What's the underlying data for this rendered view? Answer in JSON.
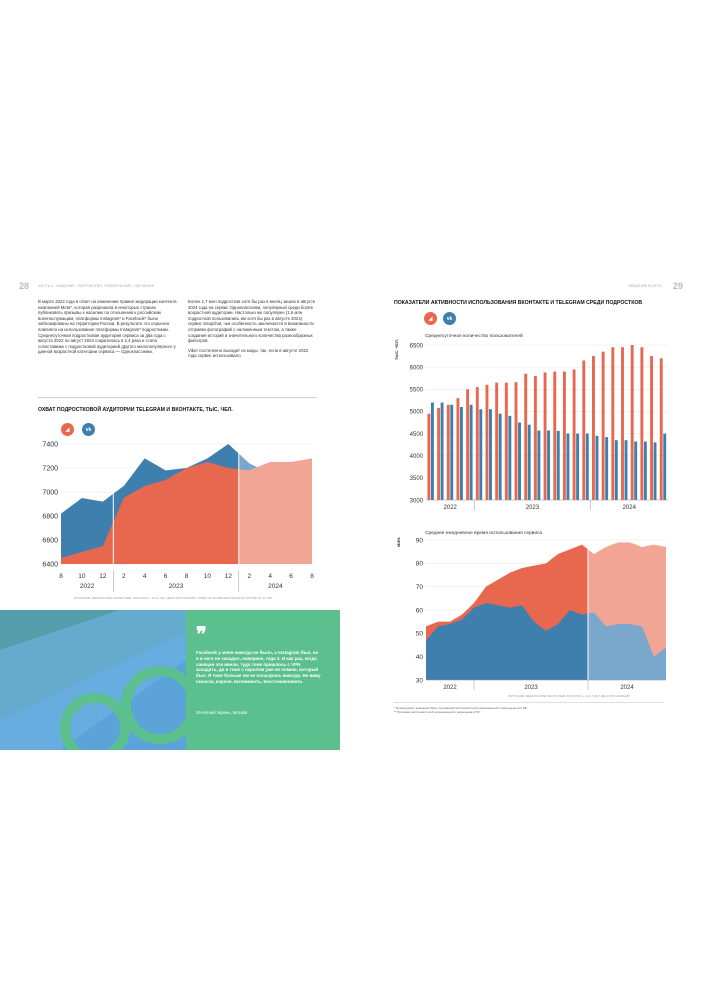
{
  "spread": {
    "left_page_number": "28",
    "right_page_number": "29",
    "left_header": "ЧАСТЬ 1. ОБЩЕНИЕ, ТВОРЧЕСТВО, РАЗВЛЕЧЕНИЕ, ОБУЧЕНИЕ",
    "right_header": "ОБЩЕНИЕ В СЕТИ"
  },
  "text": {
    "col1": "В марте 2022 года в ответ на изменение правил модерации контента компанией Meta*, которая разрешила в некоторых странах публиковать призывы к насилию по отношению к российским военнослужащим, платформы Instagram* и Facebook* были заблокированы на территории России. В результате это серьезно повлияло на использование платформы Instagram* подростками. Среднесуточная подростковая аудитория сервиса за два года с августа 2022 по август 2024 сократилась в 2,4 раза и стала сопоставима с подростковой аудиторией другого малопопулярного у данной возрастной категории сервиса — Одноклассники.",
    "col2_p1": "Более 1,7 млн подростков хотя бы раз в месяц зашли в августе 2024 года на сервис Одноклассники, популярный среди более возрастной аудитории. Настолько же популярен (1,6 млн подростков пользовались им хотя бы раз в августе 2024) сервис Snapchat, чья особенность заключается в возможности отправки фотографий с наложенным текстом, а также создания историй и значительного количества разнообразных фильтров.",
    "col2_p2": "Viber постепенно выходит из моды, так, если в августе 2022 года сервис использовало"
  },
  "reach_chart": {
    "title": "ОХВАТ ПОДРОСТКОВОЙ АУДИТОРИИ TELEGRAM И ВКОНТАКТЕ, ТЫС. ЧЕЛ.",
    "icons": [
      "telegram-icon",
      "vk-icon"
    ],
    "icon_labels": [
      "◢",
      "vk"
    ],
    "source": "ИСТОЧНИК: MEDIASCOPE CROSS WEB. РОССИЯ 0+, 12-17 ЛЕТ, ДЕСКТОП+МОБАЙЛ. ОХВАТ ЗА РАЗАВНЫЙ МЕСЯЦ В ГРУППЕ 12–17 ЛЕТ"
  },
  "activity_title": "ПОКАЗАТЕЛИ АКТИВНОСТИ ИСПОЛЬЗОВАНИЯ ВКОНТАКТЕ И TELEGRAM СРЕДИ ПОДРОСТКОВ",
  "daily_chart": {
    "subtitle": "Среднесуточное количество пользователей",
    "unit": "ТЫС. ЧЕЛ."
  },
  "time_chart": {
    "subtitle": "Среднее ежедневное время использования сервиса",
    "unit": "МИН.",
    "source": "ИСТОЧНИК: MEDIASCOPE CROSS WEB. РОССИЯ 0+, 12-17 ЛЕТ, ДЕСКТОП+МОБАЙЛ"
  },
  "footnotes": [
    "* Принадлежит компании Meta, признанной экстремистской организацией и запрещенной в РФ",
    "** Признана экстремистской организацией и запрещена в РФ"
  ],
  "quote": {
    "mark": "❞",
    "text": "Facebook у меня никогда не было, а Instagram был, но я в него не заходил, наверное, года 2. И как раз, когда санкции эти ввели, туда тоже пришлось с VPN заходить, да и тоже с паролем уже не помню, который был. Я тоже больше им не пользуюсь никогда. Не вижу смысла, короче, вспоминать, восстанавливать.",
    "author": "16-летний парень, Москва"
  },
  "colors": {
    "telegram": "#e8684f",
    "telegram_light": "#f2a595",
    "vk": "#3f7fad",
    "vk_light": "#7aa8cc",
    "green": "#5cbf8e",
    "blue_band": "#5ba3d9"
  },
  "chart_data": [
    {
      "id": "reach",
      "type": "area",
      "x": [
        "8",
        "10",
        "12",
        "2",
        "4",
        "6",
        "8",
        "10",
        "12",
        "2",
        "4",
        "6",
        "8"
      ],
      "year_labels": [
        "2022",
        "2023",
        "2024"
      ],
      "ylim": [
        6400,
        7400
      ],
      "yticks": [
        6400,
        6600,
        6800,
        7000,
        7200,
        7400
      ],
      "series": [
        {
          "name": "Telegram",
          "values": [
            6450,
            6500,
            6550,
            6950,
            7050,
            7100,
            7200,
            7250,
            7200,
            7180,
            7250,
            7250,
            7280
          ]
        },
        {
          "name": "VK",
          "values": [
            6820,
            6950,
            6920,
            7050,
            7280,
            7180,
            7200,
            7280,
            7400,
            7240,
            7150,
            7230,
            7180
          ]
        }
      ]
    },
    {
      "id": "daily-users",
      "type": "bar",
      "ylim": [
        3000,
        6500
      ],
      "yticks": [
        3000,
        3500,
        4000,
        4500,
        5000,
        5500,
        6000,
        6500
      ],
      "year_labels": [
        "2022",
        "2023",
        "2024"
      ],
      "series": [
        {
          "name": "Telegram",
          "values": [
            4950,
            5080,
            5150,
            5300,
            5500,
            5550,
            5600,
            5650,
            5650,
            5660,
            5850,
            5800,
            5880,
            5900,
            5900,
            5950,
            6150,
            6250,
            6350,
            6450,
            6450,
            6500,
            6450,
            6250,
            6200
          ]
        },
        {
          "name": "VK",
          "values": [
            5200,
            5200,
            5150,
            5100,
            5150,
            5050,
            5050,
            4950,
            4900,
            4750,
            4700,
            4570,
            4570,
            4560,
            4500,
            4500,
            4500,
            4450,
            4420,
            4350,
            4350,
            4320,
            4320,
            4300,
            4500
          ]
        }
      ]
    },
    {
      "id": "daily-time",
      "type": "area",
      "ylim": [
        30,
        90
      ],
      "yticks": [
        30,
        40,
        50,
        60,
        70,
        80,
        90
      ],
      "year_labels": [
        "2022",
        "2023",
        "2024"
      ],
      "series": [
        {
          "name": "Telegram",
          "values": [
            53,
            55,
            55,
            58,
            63,
            70,
            73,
            76,
            78,
            79,
            80,
            84,
            86,
            88,
            84,
            87,
            89,
            89,
            87,
            88,
            87
          ]
        },
        {
          "name": "VK",
          "values": [
            47,
            53,
            54,
            56,
            61,
            63,
            62,
            61,
            62,
            55,
            51,
            54,
            60,
            58,
            59,
            53,
            54,
            54,
            53,
            40,
            44
          ]
        }
      ]
    }
  ]
}
